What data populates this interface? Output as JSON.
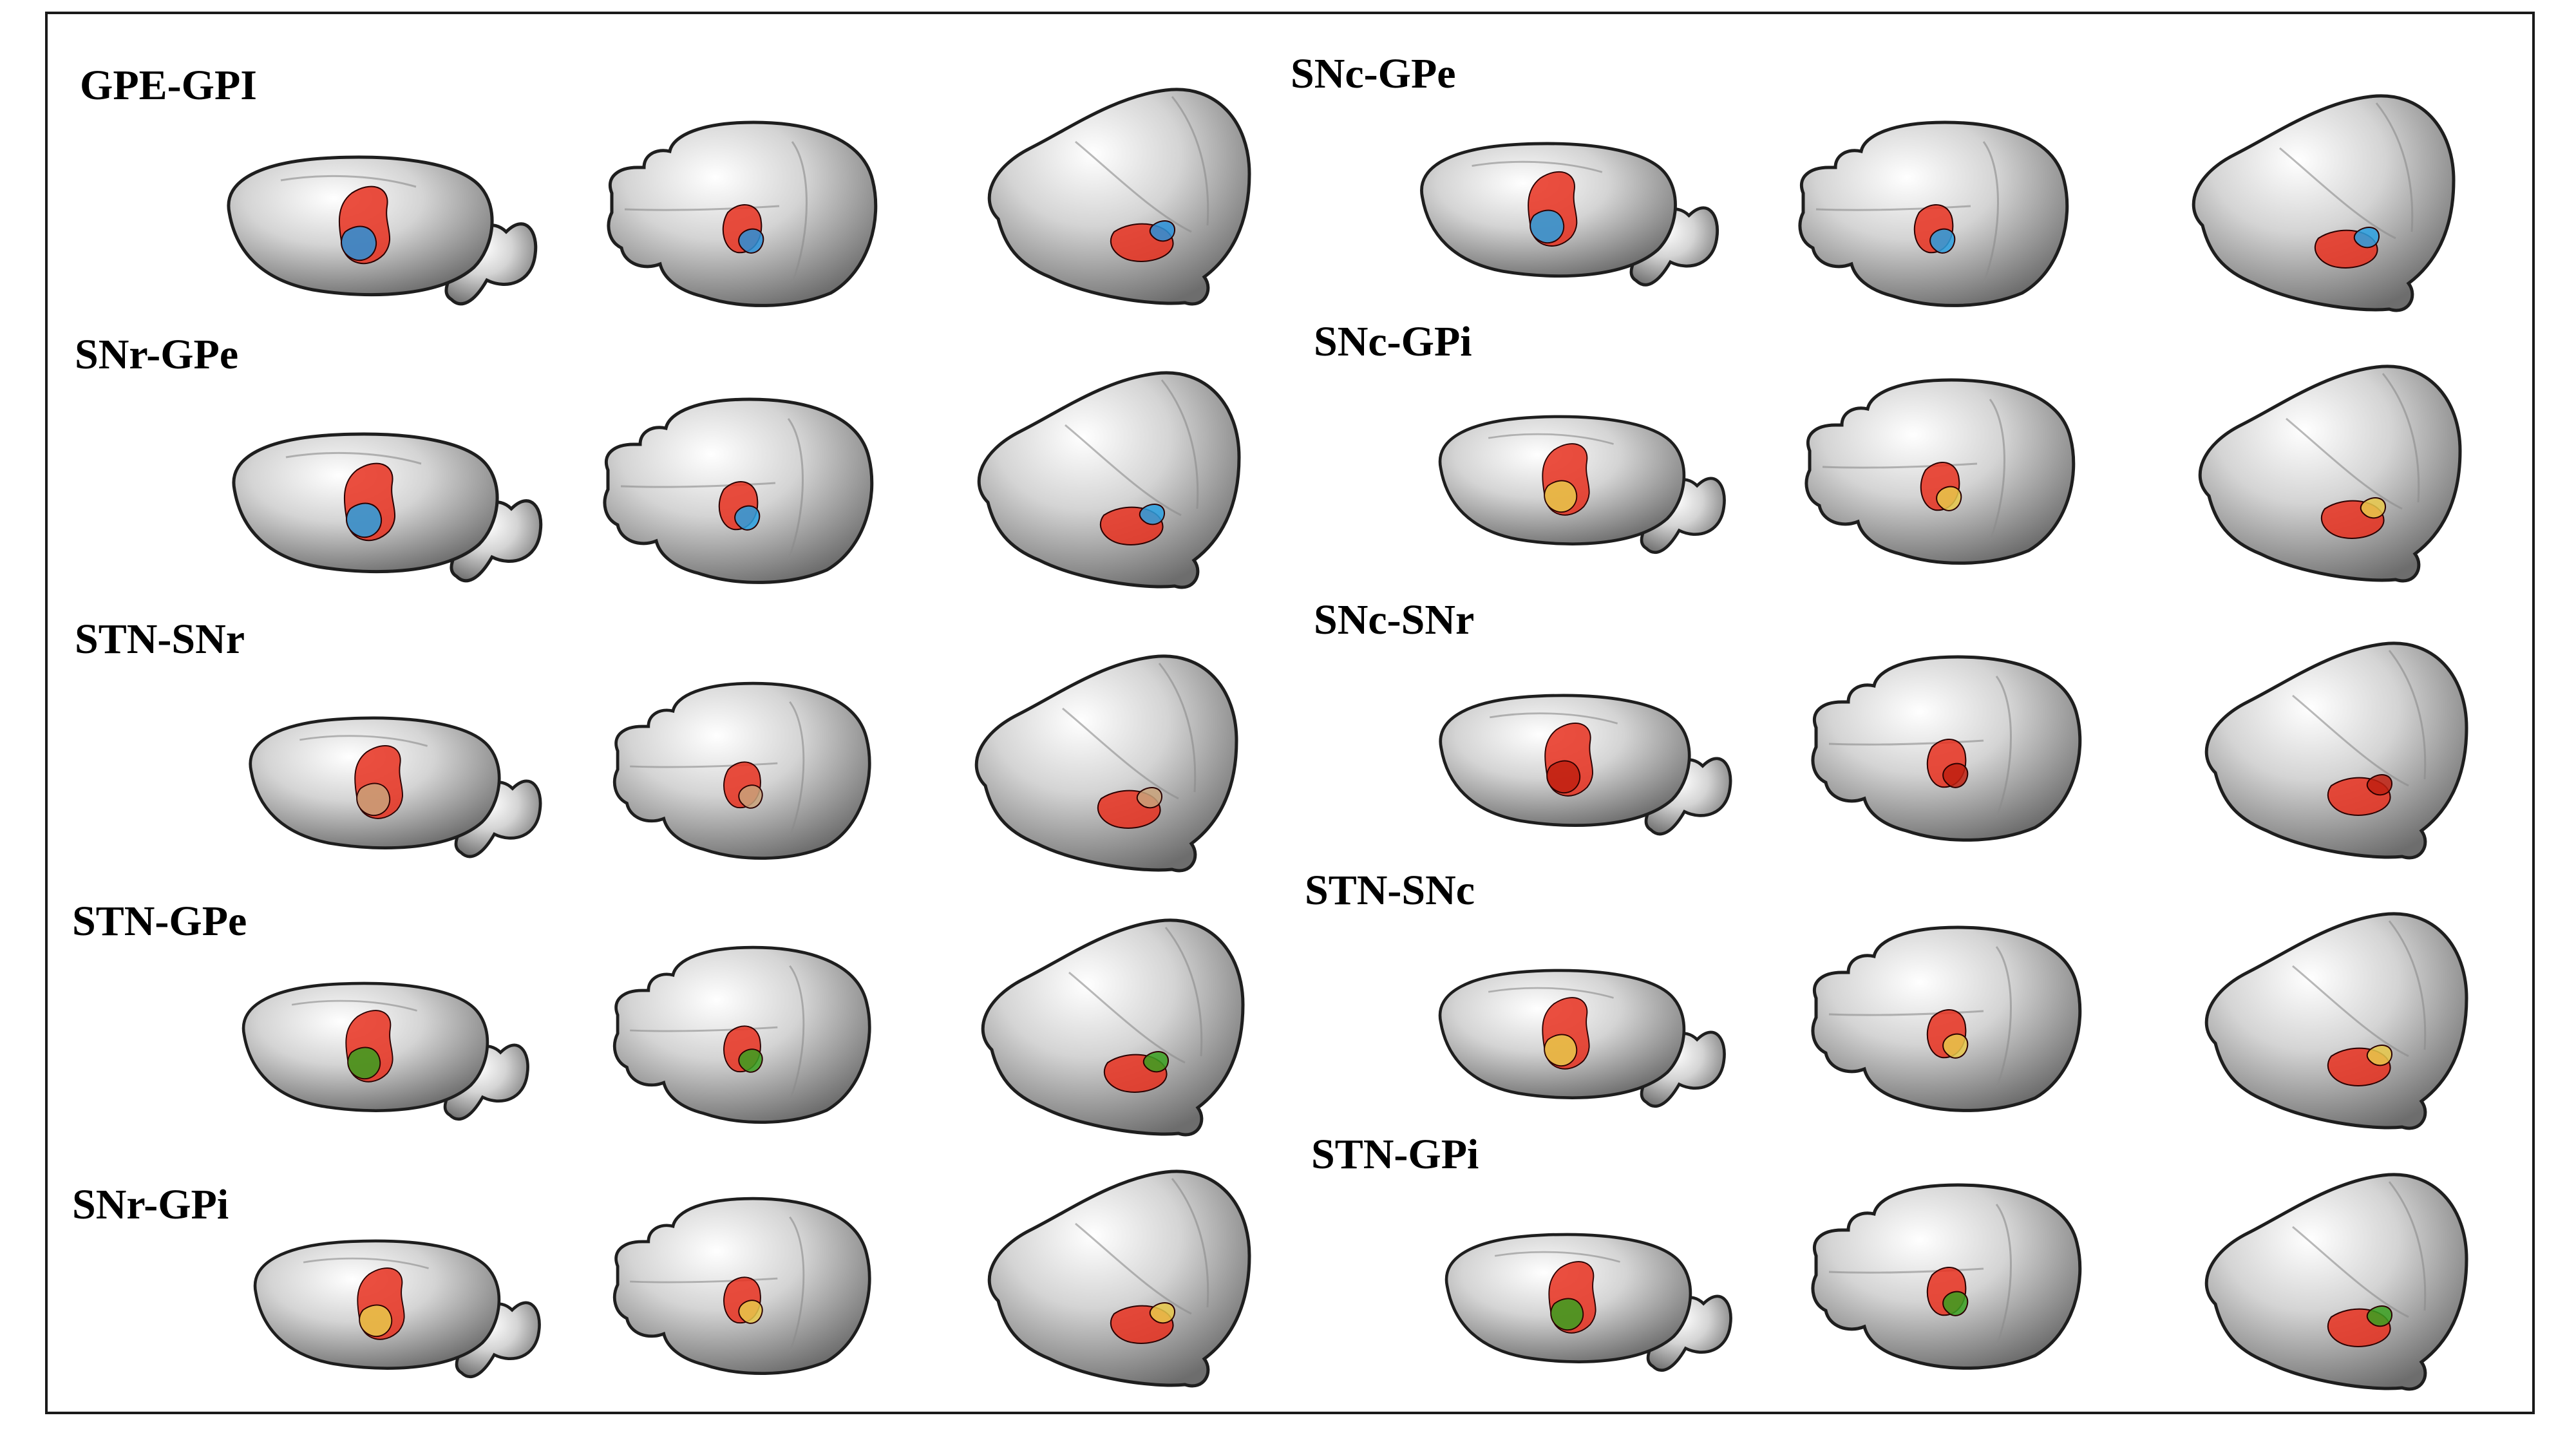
{
  "figure": {
    "panels": [
      {
        "label": "GPE-GPI",
        "hl": [
          [
            "#e8301e",
            "#2a90d8"
          ]
        ]
      },
      {
        "label": "SNr-GPe",
        "hl": [
          [
            "#e8301e",
            "#2aa0e0"
          ]
        ]
      },
      {
        "label": "STN-SNr",
        "hl": [
          [
            "#e8301e",
            "#c9a27a"
          ]
        ]
      },
      {
        "label": "STN-GPe",
        "hl": [
          [
            "#e8301e",
            "#3aa020"
          ]
        ]
      },
      {
        "label": "SNr-GPi",
        "hl": [
          [
            "#e8301e",
            "#e8c84a"
          ]
        ]
      },
      {
        "label": "SNc-GPe",
        "hl": [
          [
            "#e8301e",
            "#2aa0e0"
          ]
        ]
      },
      {
        "label": "SNc-GPi",
        "hl": [
          [
            "#e8301e",
            "#e8c84a"
          ]
        ]
      },
      {
        "label": "SNc-SNr",
        "hl": [
          [
            "#e8301e",
            "#c02010"
          ]
        ]
      },
      {
        "label": "STN-SNc",
        "hl": [
          [
            "#e8301e",
            "#e8c84a"
          ]
        ]
      },
      {
        "label": "STN-GPi",
        "hl": [
          [
            "#e8301e",
            "#3aa020"
          ]
        ]
      }
    ]
  }
}
